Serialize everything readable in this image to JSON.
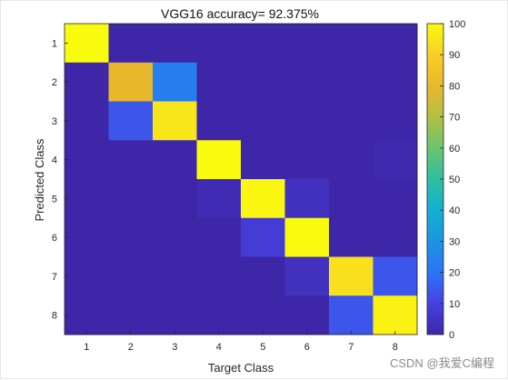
{
  "chart_data": {
    "type": "heatmap",
    "title": "VGG16 accuracy= 92.375%",
    "xlabel": "Target Class",
    "ylabel": "Predicted Class",
    "x_categories": [
      "1",
      "2",
      "3",
      "4",
      "5",
      "6",
      "7",
      "8"
    ],
    "y_categories": [
      "1",
      "2",
      "3",
      "4",
      "5",
      "6",
      "7",
      "8"
    ],
    "values": [
      [
        100,
        0,
        0,
        0,
        0,
        0,
        0,
        0
      ],
      [
        0,
        80,
        23,
        0,
        0,
        0,
        0,
        0
      ],
      [
        0,
        14,
        95,
        0,
        0,
        0,
        0,
        0
      ],
      [
        0,
        0,
        0,
        100,
        0,
        0,
        0,
        1
      ],
      [
        0,
        0,
        0,
        2,
        99,
        4,
        0,
        0
      ],
      [
        0,
        0,
        0,
        0,
        8,
        100,
        0,
        0
      ],
      [
        0,
        0,
        0,
        0,
        0,
        4,
        94,
        14
      ],
      [
        0,
        0,
        0,
        0,
        0,
        0,
        14,
        98
      ]
    ],
    "colorbar": {
      "min": 0,
      "max": 100,
      "ticks": [
        "100",
        "90",
        "80",
        "70",
        "60",
        "50",
        "40",
        "30",
        "20",
        "10",
        "0"
      ],
      "colormap": "parula"
    },
    "grid": false
  },
  "watermark": "CSDN @我爱C编程",
  "colors": {
    "low": "#3e26a8",
    "high": "#f9fb0e"
  }
}
